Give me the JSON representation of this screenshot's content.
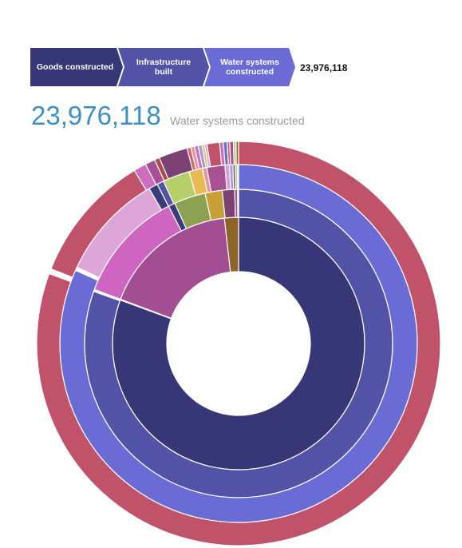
{
  "breadcrumb": {
    "steps": [
      "Goods constructed",
      "Infrastructure built",
      "Water systems constructed"
    ],
    "value": "23,976,118"
  },
  "summary": {
    "value": "23,976,118",
    "label": "Water systems constructed"
  },
  "chart_data": {
    "type": "sunburst",
    "start_angle_deg": 90,
    "rings": [
      {
        "level": 1,
        "segments": [
          {
            "name": "",
            "value": 80.6,
            "color": "#373777"
          },
          {
            "name": "",
            "value": 0.1,
            "color": "#ffffff"
          },
          {
            "name": "",
            "value": 17.5,
            "color": "#a34d92"
          },
          {
            "name": "",
            "value": 1.8,
            "color": "#8f6327"
          }
        ]
      },
      {
        "level": 2,
        "segments": [
          {
            "name": "",
            "value": 80.5,
            "color": "#5252a6"
          },
          {
            "name": "",
            "value": 0.2,
            "color": "#ffffff"
          },
          {
            "name": "",
            "value": 11.8,
            "color": "#ce65c0"
          },
          {
            "name": "",
            "value": 0.7,
            "color": "#393b7a"
          },
          {
            "name": "",
            "value": 3.3,
            "color": "#8ca252"
          },
          {
            "name": "",
            "value": 1.8,
            "color": "#c9a036"
          },
          {
            "name": "",
            "value": 1.3,
            "color": "#7b4173"
          },
          {
            "name": "",
            "value": 0.3,
            "color": "#a55194"
          },
          {
            "name": "",
            "value": 0.1,
            "color": "#8c6d31"
          }
        ]
      },
      {
        "level": 3,
        "segments": [
          {
            "name": "",
            "value": 80.4,
            "color": "#6b6bd6"
          },
          {
            "name": "",
            "value": 0.3,
            "color": "#ffffff"
          },
          {
            "name": "",
            "value": 9.5,
            "color": "#dda6d8"
          },
          {
            "name": "",
            "value": 0.8,
            "color": "#393b7a"
          },
          {
            "name": "",
            "value": 0.6,
            "color": "#5254a3"
          },
          {
            "name": "",
            "value": 2.4,
            "color": "#b5cf6b"
          },
          {
            "name": "",
            "value": 1.2,
            "color": "#e7ba52"
          },
          {
            "name": "",
            "value": 0.4,
            "color": "#e7969c"
          },
          {
            "name": "",
            "value": 1.6,
            "color": "#a55194"
          },
          {
            "name": "",
            "value": 0.4,
            "color": "#de9ed6"
          },
          {
            "name": "",
            "value": 0.3,
            "color": "#9c9ede"
          },
          {
            "name": "",
            "value": 0.2,
            "color": "#7b4173"
          },
          {
            "name": "",
            "value": 0.2,
            "color": "#b5cf6b"
          },
          {
            "name": "",
            "value": 0.1,
            "color": "#8c6d31"
          }
        ]
      },
      {
        "level": 4,
        "segments": [
          {
            "name": "",
            "value": 80.3,
            "color": "#c0526a"
          },
          {
            "name": "",
            "value": 0.4,
            "color": "#ffffff"
          },
          {
            "name": "",
            "value": 10.3,
            "color": "#c0526a"
          },
          {
            "name": "",
            "value": 1.0,
            "color": "#ce6dbd"
          },
          {
            "name": "",
            "value": 0.8,
            "color": "#a55194"
          },
          {
            "name": "",
            "value": 0.4,
            "color": "#ad494a"
          },
          {
            "name": "",
            "value": 2.3,
            "color": "#7b4173"
          },
          {
            "name": "",
            "value": 0.3,
            "color": "#d6616b"
          },
          {
            "name": "",
            "value": 0.3,
            "color": "#e7969c"
          },
          {
            "name": "",
            "value": 0.3,
            "color": "#ce6dbd"
          },
          {
            "name": "",
            "value": 0.3,
            "color": "#9c9ede"
          },
          {
            "name": "",
            "value": 0.2,
            "color": "#e7ba52"
          },
          {
            "name": "",
            "value": 0.2,
            "color": "#de9ed6"
          },
          {
            "name": "",
            "value": 1.0,
            "color": "#c0526a"
          },
          {
            "name": "",
            "value": 0.3,
            "color": "#ce6dbd"
          },
          {
            "name": "",
            "value": 0.3,
            "color": "#6b6ecf"
          },
          {
            "name": "",
            "value": 0.2,
            "color": "#d6616b"
          },
          {
            "name": "",
            "value": 0.3,
            "color": "#a55194"
          },
          {
            "name": "",
            "value": 0.2,
            "color": "#b5cf6b"
          },
          {
            "name": "",
            "value": 0.2,
            "color": "#8c6d31"
          }
        ]
      }
    ]
  }
}
